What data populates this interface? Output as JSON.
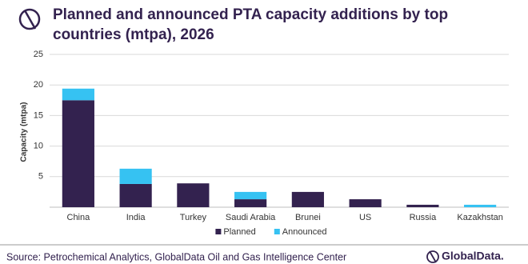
{
  "chart_data": {
    "type": "stacked_bar",
    "title": "Planned and announced PTA capacity additions by top countries (mtpa), 2026",
    "y_label": "Capacity (mtpa)",
    "categories": [
      "China",
      "India",
      "Turkey",
      "Saudi Arabia",
      "Brunei",
      "US",
      "Russia",
      "Kazakhstan"
    ],
    "series": [
      {
        "name": "Planned",
        "color": "#33224f",
        "values": [
          17.5,
          3.8,
          3.9,
          1.3,
          2.5,
          1.3,
          0.4,
          0
        ]
      },
      {
        "name": "Announced",
        "color": "#36c2f2",
        "values": [
          1.9,
          2.5,
          0,
          1.2,
          0,
          0,
          0,
          0.4
        ]
      }
    ],
    "ylim": [
      0,
      25
    ],
    "yticks": [
      5,
      10,
      15,
      20,
      25
    ],
    "grid": true,
    "legend": "bottom",
    "source": "Source: Petrochemical Analytics, GlobalData Oil and Gas Intelligence Center",
    "brand": "GlobalData."
  }
}
